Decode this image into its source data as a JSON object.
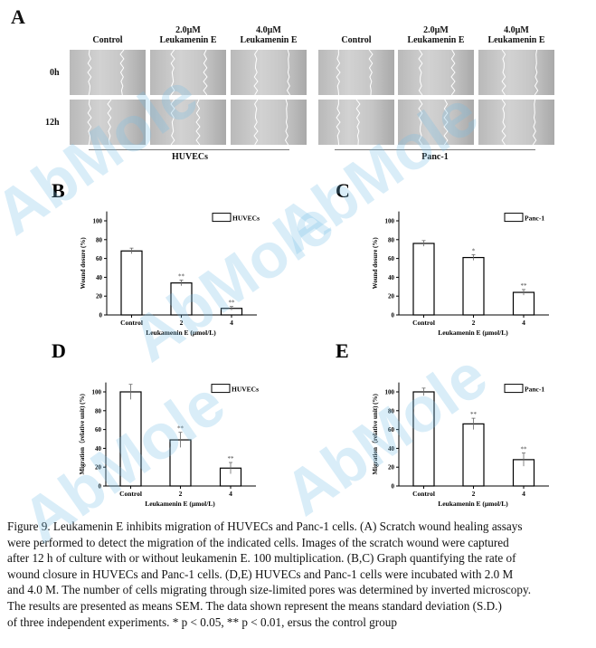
{
  "watermark": "AbMole",
  "panel_a": {
    "label": "A",
    "columns": [
      "Control",
      "2.0µM\nLeukamenin E",
      "4.0µM\nLeukamenin E",
      "Control",
      "2.0µM\nLeukamenin E",
      "4.0µM\nLeukamenin E"
    ],
    "rows": [
      "0h",
      "12h"
    ],
    "groups": [
      "HUVECs",
      "Panc-1"
    ]
  },
  "chart_data": [
    {
      "panel": "B",
      "type": "bar",
      "categories": [
        "Control",
        "2",
        "4"
      ],
      "values": [
        68,
        34,
        7
      ],
      "errors": [
        3,
        3,
        2
      ],
      "significance": [
        "",
        "**",
        "**"
      ],
      "legend": "HUVECs",
      "legend_position": "top-right",
      "xlabel": "Leukamenin E (μmol/L)",
      "ylabel": "Wound dosure (%)",
      "ylim": [
        0,
        110
      ],
      "yticks": [
        0,
        20,
        40,
        60,
        80,
        100
      ]
    },
    {
      "panel": "C",
      "type": "bar",
      "categories": [
        "Control",
        "2",
        "4"
      ],
      "values": [
        76,
        61,
        24
      ],
      "errors": [
        3,
        3,
        3
      ],
      "significance": [
        "",
        "*",
        "**"
      ],
      "legend": "Panc-1",
      "legend_position": "top-right",
      "xlabel": "Leukamenin E (μmol/L)",
      "ylabel": "Wound dosure (%)",
      "ylim": [
        0,
        110
      ],
      "yticks": [
        0,
        20,
        40,
        60,
        80,
        100
      ]
    },
    {
      "panel": "D",
      "type": "bar",
      "categories": [
        "Control",
        "2",
        "4"
      ],
      "values": [
        100,
        49,
        19
      ],
      "errors": [
        8,
        8,
        6
      ],
      "significance": [
        "",
        "**",
        "**"
      ],
      "legend": "HUVECs",
      "legend_position": "top-right",
      "xlabel": "Leukamenin E (μmol/L)",
      "ylabel": "Migration（relative unit) (%)",
      "ylim": [
        0,
        110
      ],
      "yticks": [
        0,
        20,
        40,
        60,
        80,
        100
      ]
    },
    {
      "panel": "E",
      "type": "bar",
      "categories": [
        "Control",
        "2",
        "4"
      ],
      "values": [
        100,
        66,
        28
      ],
      "errors": [
        4,
        6,
        7
      ],
      "significance": [
        "",
        "**",
        "**"
      ],
      "legend": "Panc-1",
      "legend_position": "top-right",
      "xlabel": "Leukamenin E (μmol/L)",
      "ylabel": "Migration（relative unit) (%)",
      "ylim": [
        0,
        110
      ],
      "yticks": [
        0,
        20,
        40,
        60,
        80,
        100
      ]
    }
  ],
  "caption": [
    "Figure 9. Leukamenin E inhibits migration of HUVECs and Panc-1 cells. (A) Scratch wound healing assays",
    "were performed to detect the migration of the indicated cells. Images of the scratch wound were captured",
    "after 12 h of culture with or without leukamenin E. 100  multiplication. (B,C) Graph quantifying the rate of",
    "wound closure in HUVECs and Panc-1 cells. (D,E) HUVECs and Panc-1 cells were incubated with 2.0  M",
    "and 4.0  M. The number of cells migrating through size-limited pores was determined by inverted microscopy.",
    "The results are presented as means   SEM. The data shown represent the means   standard deviation (S.D.)",
    "of three independent experiments. * p < 0.05, ** p < 0.01, ersus the control group"
  ]
}
